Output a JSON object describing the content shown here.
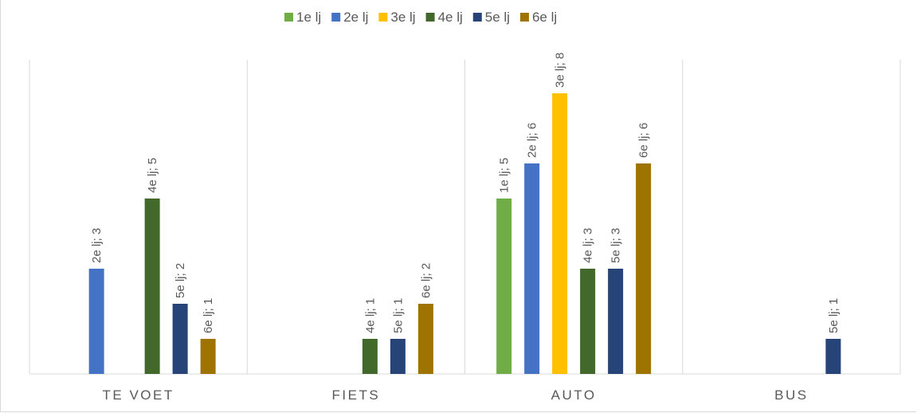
{
  "chart_data": {
    "type": "bar",
    "categories": [
      "TE VOET",
      "FIETS",
      "AUTO",
      "BUS"
    ],
    "series": [
      {
        "name": "1e lj",
        "color": "#70ad47",
        "values": [
          null,
          null,
          5,
          null
        ]
      },
      {
        "name": "2e lj",
        "color": "#4472c4",
        "values": [
          3,
          null,
          6,
          null
        ]
      },
      {
        "name": "3e lj",
        "color": "#ffc000",
        "values": [
          null,
          null,
          8,
          null
        ]
      },
      {
        "name": "4e lj",
        "color": "#43682b",
        "values": [
          5,
          1,
          3,
          null
        ]
      },
      {
        "name": "5e lj",
        "color": "#264478",
        "values": [
          2,
          1,
          3,
          1
        ]
      },
      {
        "name": "6e lj",
        "color": "#9e7300",
        "values": [
          1,
          2,
          6,
          null
        ]
      }
    ],
    "data_labels": {
      "TE VOET": [
        "2e lj; 3",
        "4e lj; 5",
        "5e lj; 2",
        "6e lj; 1"
      ],
      "FIETS": [
        "4e lj; 1",
        "5e lj; 1",
        "6e lj; 2"
      ],
      "AUTO": [
        "1e lj; 5",
        "2e lj; 6",
        "3e lj; 8",
        "4e lj; 3",
        "5e lj; 3",
        "6e lj; 6"
      ],
      "BUS": [
        "5e lj; 1"
      ]
    },
    "ylim": [
      0,
      9
    ],
    "grid": "vertical category separators",
    "legend": "top",
    "title": "",
    "xlabel": "",
    "ylabel": ""
  }
}
